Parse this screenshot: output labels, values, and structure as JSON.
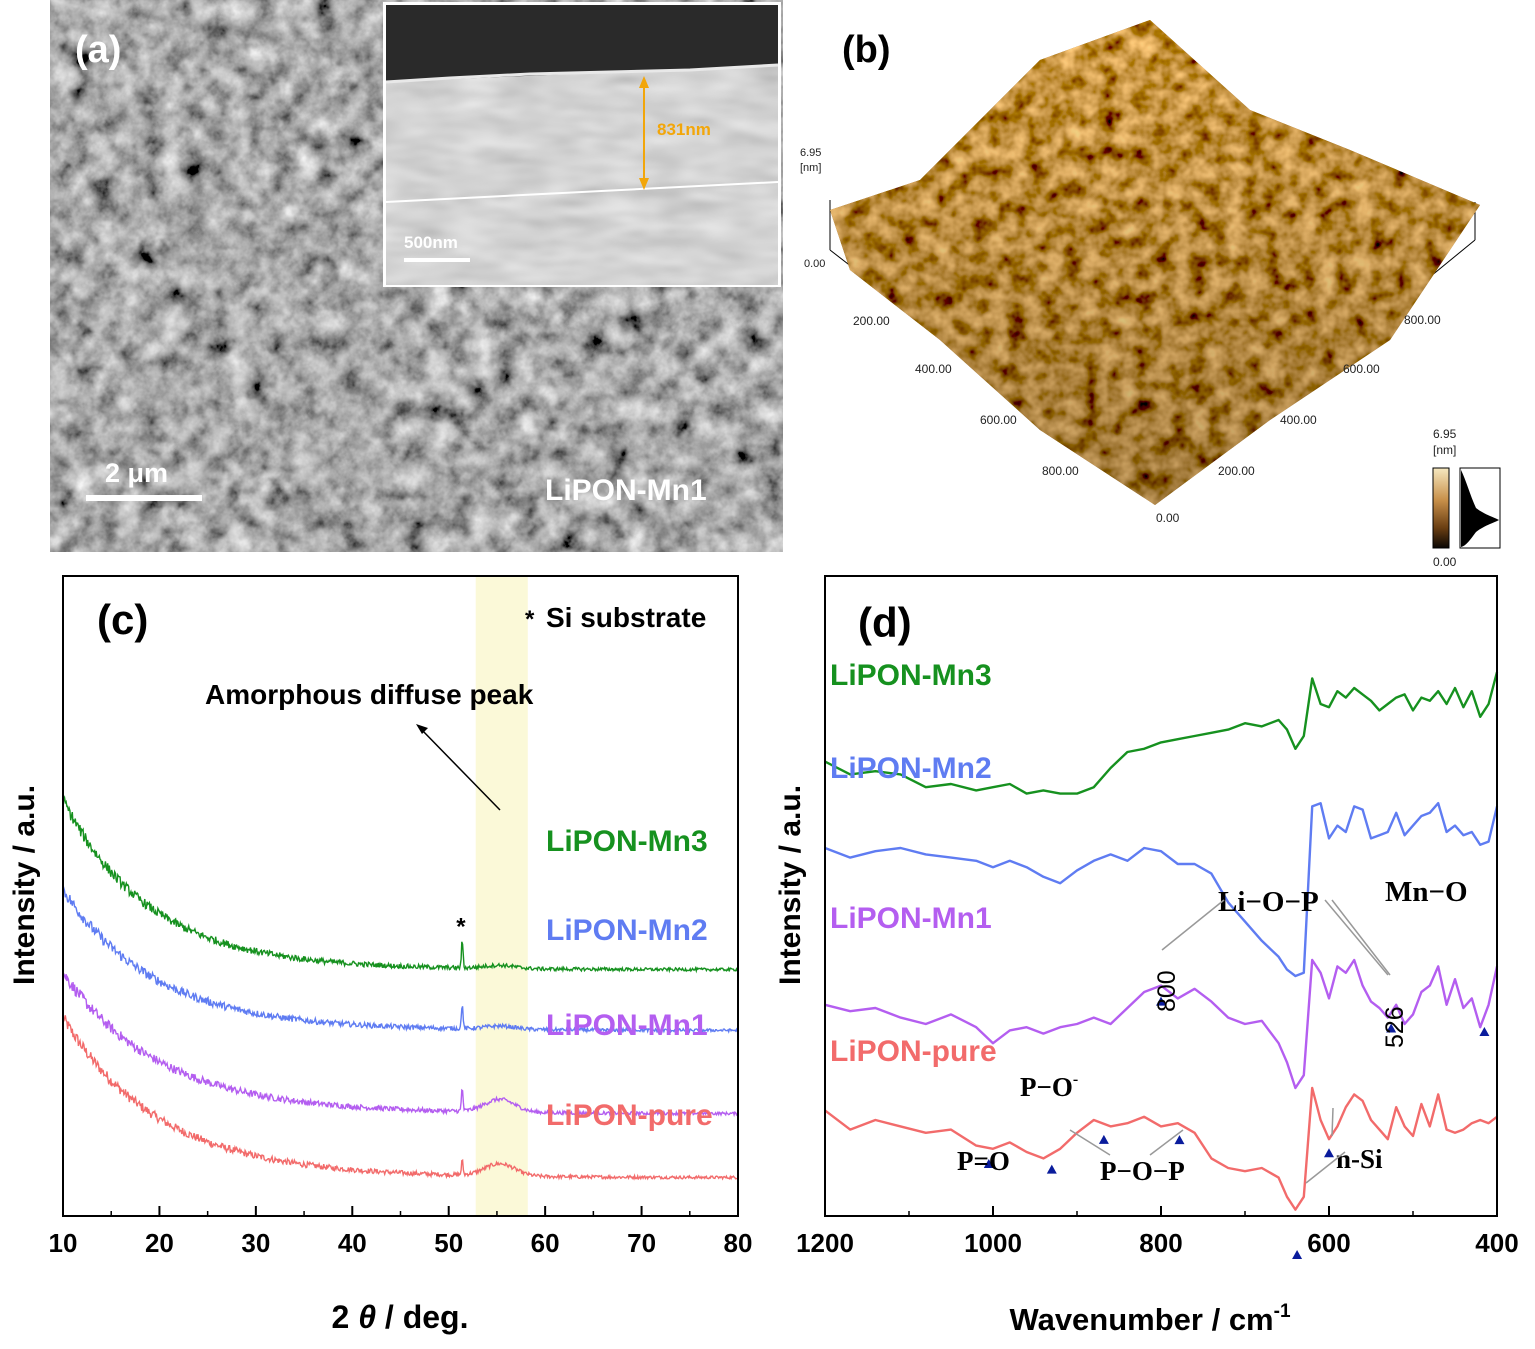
{
  "panel_a": {
    "label": "(a)",
    "sample": "LiPON-Mn1",
    "scale_main": "2 μm",
    "inset_scale": "500nm",
    "thickness": "831nm"
  },
  "panel_b": {
    "label": "(b)",
    "z_max": "6.95",
    "z_unit": "[nm]",
    "z_min": "0.00",
    "axis_left_ticks": [
      "200.00",
      "400.00",
      "600.00",
      "800.00"
    ],
    "axis_right_ticks": [
      "800.00",
      "600.00",
      "400.00",
      "200.00"
    ],
    "origin": "0.00",
    "bar_max": "6.95",
    "bar_unit": "[nm]",
    "bar_min": "0.00"
  },
  "chart_data": [
    {
      "panel": "(c)",
      "type": "line",
      "xlabel_prefix": "2 ",
      "xlabel_theta": "θ",
      "xlabel_suffix": " / deg.",
      "ylabel": "Intensity / a.u.",
      "xlim": [
        10,
        80
      ],
      "ylim": [
        0,
        100
      ],
      "x_ticks": [
        "10",
        "20",
        "30",
        "40",
        "50",
        "60",
        "70",
        "80"
      ],
      "shaded_region": [
        52.8,
        58.2
      ],
      "legend_note_mark": "*",
      "legend_note": "Si substrate",
      "annotation": "Amorphous diffuse peak",
      "peak_mark": "*",
      "si_peak": 51.4,
      "series": [
        {
          "name": "LiPON-pure",
          "color": "#f26b6b",
          "baseline": 6.0,
          "start": 31.0,
          "decay": 10.0,
          "si_height": 2.2,
          "hump": 1.9
        },
        {
          "name": "LiPON-Mn1",
          "color": "#b45ef0",
          "baseline": 16.0,
          "start": 38.0,
          "decay": 10.0,
          "si_height": 3.5,
          "hump": 2.0
        },
        {
          "name": "LiPON-Mn2",
          "color": "#5f7cf2",
          "baseline": 29.0,
          "start": 51.0,
          "decay": 9.5,
          "si_height": 3.8,
          "hump": 0.5
        },
        {
          "name": "LiPON-Mn3",
          "color": "#16911f",
          "baseline": 38.5,
          "start": 65.0,
          "decay": 9.0,
          "si_height": 4.2,
          "hump": 0.5
        }
      ]
    },
    {
      "panel": "(d)",
      "type": "line",
      "xlabel": "Wavenumber / cm",
      "xlabel_sup": "-1",
      "ylabel": "Intensity / a.u.",
      "xlim": [
        1200,
        400
      ],
      "ylim": [
        0,
        100
      ],
      "x_ticks": [
        "1200",
        "1000",
        "800",
        "600",
        "400"
      ],
      "x": [
        1200,
        1170,
        1140,
        1110,
        1080,
        1050,
        1020,
        1000,
        980,
        960,
        940,
        920,
        900,
        880,
        860,
        840,
        820,
        800,
        780,
        760,
        740,
        720,
        700,
        680,
        660,
        650,
        640,
        630,
        620,
        610,
        600,
        590,
        580,
        570,
        560,
        550,
        540,
        530,
        520,
        510,
        500,
        490,
        480,
        470,
        460,
        450,
        440,
        430,
        420,
        410,
        400
      ],
      "series": [
        {
          "name": "LiPON-pure",
          "color": "#f26b6b",
          "values": [
            16.5,
            13.5,
            15.0,
            14.0,
            13.0,
            13.5,
            11.0,
            10.5,
            11.5,
            10.0,
            9.0,
            10.5,
            13.0,
            15.0,
            14.0,
            14.5,
            15.5,
            14.0,
            14.5,
            13.0,
            9.0,
            7.5,
            7.0,
            7.5,
            6.0,
            3.0,
            1.0,
            3.0,
            20.0,
            15.0,
            12.0,
            14.0,
            17.0,
            19.0,
            18.0,
            15.0,
            13.5,
            12.0,
            17.0,
            14.0,
            12.5,
            17.5,
            14.0,
            19.0,
            13.5,
            13.0,
            13.5,
            14.5,
            15.0,
            14.5,
            15.5
          ]
        },
        {
          "name": "LiPON-Mn1",
          "color": "#b45ef0",
          "values": [
            33.0,
            32.0,
            32.5,
            31.0,
            30.0,
            31.5,
            29.5,
            27.0,
            29.0,
            29.5,
            28.5,
            29.5,
            30.0,
            31.0,
            30.0,
            32.5,
            35.0,
            36.0,
            34.0,
            35.5,
            33.5,
            31.0,
            30.0,
            30.5,
            27.0,
            24.0,
            20.0,
            22.0,
            40.0,
            38.0,
            34.0,
            39.0,
            38.0,
            40.0,
            36.0,
            33.5,
            32.5,
            31.0,
            33.0,
            30.0,
            31.5,
            35.0,
            36.0,
            39.0,
            33.0,
            37.0,
            32.5,
            34.0,
            29.5,
            33.0,
            39.0
          ]
        },
        {
          "name": "LiPON-Mn2",
          "color": "#5f7cf2",
          "values": [
            57.5,
            56.0,
            57.0,
            57.5,
            56.5,
            56.0,
            55.5,
            54.5,
            55.5,
            54.5,
            53.0,
            52.0,
            54.0,
            55.5,
            56.5,
            55.5,
            57.5,
            57.0,
            55.0,
            55.0,
            53.5,
            49.0,
            46.0,
            43.0,
            40.5,
            38.5,
            37.5,
            38.0,
            64.0,
            64.5,
            59.0,
            61.0,
            60.0,
            64.0,
            63.5,
            59.0,
            59.5,
            60.0,
            63.0,
            59.5,
            61.0,
            62.5,
            63.0,
            64.5,
            60.0,
            61.0,
            59.5,
            60.0,
            58.0,
            58.5,
            64.0
          ]
        },
        {
          "name": "LiPON-Mn3",
          "color": "#16911f",
          "values": [
            71.0,
            69.0,
            69.5,
            69.0,
            67.0,
            67.5,
            66.5,
            67.0,
            67.5,
            66.0,
            66.5,
            66.0,
            66.0,
            67.0,
            70.0,
            72.5,
            73.0,
            74.0,
            74.5,
            75.0,
            75.5,
            76.0,
            77.0,
            76.5,
            77.5,
            76.0,
            73.0,
            75.0,
            84.0,
            80.0,
            79.5,
            82.0,
            81.0,
            82.5,
            81.5,
            80.5,
            79.0,
            80.0,
            81.0,
            81.5,
            79.0,
            81.0,
            80.5,
            82.0,
            80.0,
            82.5,
            79.5,
            82.0,
            78.0,
            80.0,
            85.0
          ]
        }
      ],
      "labels": {
        "li_o_p": "Li−O−P",
        "mn_o": "Mn−O",
        "wn_800": "800",
        "wn_526": "526",
        "p_o_minus": "P−O",
        "p_o_minus_sup": "-",
        "p_eq_o": "P=O",
        "p_o_p": "P−O−P",
        "n_si": "n-Si"
      },
      "markers_pure": [
        1005,
        930,
        868,
        778
      ],
      "markers_mn1": [
        800,
        526,
        415
      ],
      "marker_nsi": 600,
      "marker_bottom": 638
    }
  ]
}
